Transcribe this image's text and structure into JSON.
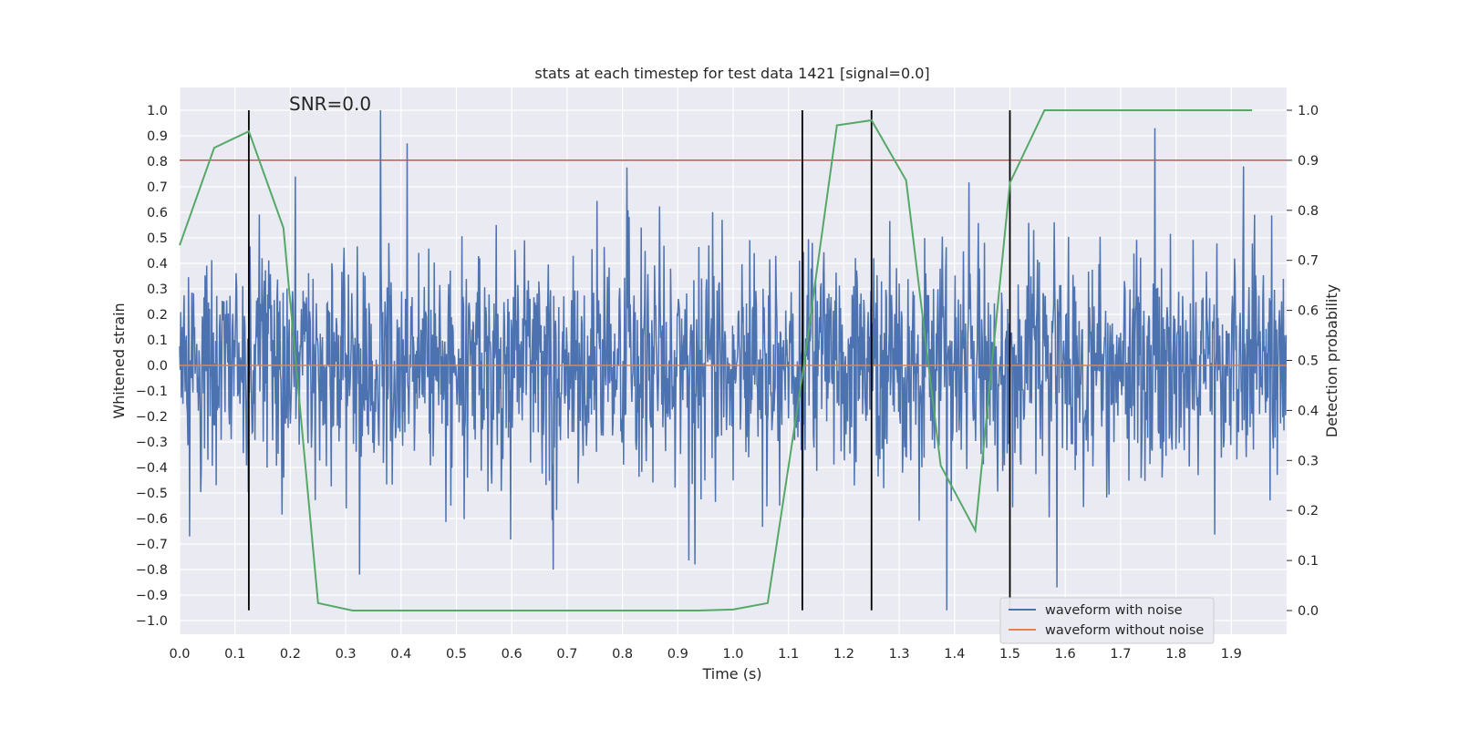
{
  "chart_data": {
    "type": "line",
    "title": "stats at each timestep for test data 1421 [signal=0.0]",
    "xlabel": "Time (s)",
    "ylabel": "Whitened strain",
    "y2label": "Detection probability",
    "annotation": "SNR=0.0",
    "xlim": [
      0.0,
      2.0
    ],
    "ylim": [
      -1.05,
      1.1
    ],
    "y2lim": [
      -0.05,
      1.05
    ],
    "x_ticks": [
      0.0,
      0.1,
      0.2,
      0.3,
      0.4,
      0.5,
      0.6,
      0.7,
      0.8,
      0.9,
      1.0,
      1.1,
      1.2,
      1.3,
      1.4,
      1.5,
      1.6,
      1.7,
      1.8,
      1.9
    ],
    "x_tick_labels": [
      "0.0",
      "0.1",
      "0.2",
      "0.3",
      "0.4",
      "0.5",
      "0.6",
      "0.7",
      "0.8",
      "0.9",
      "1.0",
      "1.1",
      "1.2",
      "1.3",
      "1.4",
      "1.5",
      "1.6",
      "1.7",
      "1.8",
      "1.9"
    ],
    "y_ticks": [
      1.0,
      0.9,
      0.8,
      0.7,
      0.6,
      0.5,
      0.4,
      0.3,
      0.2,
      0.1,
      0.0,
      -0.1,
      -0.2,
      -0.3,
      -0.4,
      -0.5,
      -0.6,
      -0.7,
      -0.8,
      -0.9,
      -1.0
    ],
    "y_tick_labels": [
      "1.0",
      "0.9",
      "0.8",
      "0.7",
      "0.6",
      "0.5",
      "0.4",
      "0.3",
      "0.2",
      "0.1",
      "0.0",
      "−0.1",
      "−0.2",
      "−0.3",
      "−0.4",
      "−0.5",
      "−0.6",
      "−0.7",
      "−0.8",
      "−0.9",
      "−1.0"
    ],
    "y2_ticks": [
      1.0,
      0.9,
      0.8,
      0.7,
      0.6,
      0.5,
      0.4,
      0.3,
      0.2,
      0.1,
      0.0
    ],
    "y2_tick_labels": [
      "1.0",
      "0.9",
      "0.8",
      "0.7",
      "0.6",
      "0.5",
      "0.4",
      "0.3",
      "0.2",
      "0.1",
      "0.0"
    ],
    "grid": true,
    "legend_position": "bottom-right",
    "colors": {
      "background": "#eaeaf2",
      "grid": "#ffffff",
      "noisy": "#4c72b0",
      "clean": "#dd8452",
      "probability": "#55a868",
      "threshold": "#c44e52",
      "vlines": "#000000"
    },
    "series": [
      {
        "name": "waveform with noise",
        "axis": "left",
        "note": "dense noisy whitened strain sampled ~2048 Hz, values mostly within ±0.5 with spikes up to ±1.0",
        "amplitude_std": 0.22,
        "spikes": [
          {
            "x": 0.363,
            "y": 1.0
          },
          {
            "x": 0.411,
            "y": 0.87
          },
          {
            "x": 1.762,
            "y": 0.93
          },
          {
            "x": 1.386,
            "y": -0.96
          },
          {
            "x": 0.325,
            "y": -0.82
          },
          {
            "x": 0.675,
            "y": -0.8
          },
          {
            "x": 1.585,
            "y": -0.87
          },
          {
            "x": 0.018,
            "y": -0.67
          }
        ]
      },
      {
        "name": "waveform without noise",
        "axis": "left",
        "x": [
          0.0,
          2.0
        ],
        "y": [
          0.0,
          0.0
        ]
      },
      {
        "name": "detection probability",
        "axis": "right",
        "x": [
          0.0,
          0.0625,
          0.125,
          0.1875,
          0.25,
          0.3125,
          0.375,
          0.4375,
          0.5,
          0.5625,
          0.625,
          0.6875,
          0.75,
          0.8125,
          0.875,
          0.9375,
          1.0,
          1.0625,
          1.125,
          1.1875,
          1.25,
          1.3125,
          1.375,
          1.4375,
          1.5,
          1.5625,
          1.625,
          1.6875,
          1.75,
          1.8125,
          1.875,
          1.9375
        ],
        "y": [
          0.73,
          0.925,
          0.958,
          0.765,
          0.015,
          0.0,
          0.0,
          0.0,
          0.0,
          0.0,
          0.0,
          0.0,
          0.0,
          0.0,
          0.0,
          0.0,
          0.002,
          0.015,
          0.47,
          0.97,
          0.98,
          0.86,
          0.29,
          0.16,
          0.855,
          1.0,
          1.0,
          1.0,
          1.0,
          1.0,
          1.0,
          1.0
        ]
      }
    ],
    "threshold": {
      "axis": "right",
      "y": 0.9
    },
    "vlines": [
      0.125,
      1.125,
      1.25,
      1.5
    ],
    "vline_range": [
      -0.96,
      1.0
    ]
  }
}
